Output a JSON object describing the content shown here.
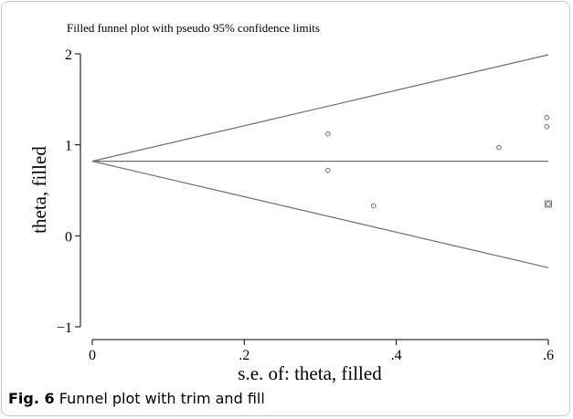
{
  "chart_data": {
    "type": "scatter",
    "title": "Filled funnel plot with pseudo 95% confidence limits",
    "xlabel": "s.e. of: theta, filled",
    "ylabel": "theta, filled",
    "xlim": [
      0,
      0.6
    ],
    "ylim": [
      -1,
      2
    ],
    "x_ticks": [
      0,
      0.2,
      0.4,
      0.6
    ],
    "x_tick_labels": [
      "0",
      ".2",
      ".4",
      ".6"
    ],
    "y_ticks": [
      -1,
      0,
      1,
      2
    ],
    "y_tick_labels": [
      "−1",
      "0",
      "1",
      "2"
    ],
    "pooled_estimate": 0.82,
    "confidence_limits": {
      "x": [
        0,
        0.6
      ],
      "upper": [
        0.82,
        1.99
      ],
      "lower": [
        0.82,
        -0.35
      ]
    },
    "observed_points": [
      {
        "x": 0.31,
        "y": 1.12
      },
      {
        "x": 0.31,
        "y": 0.72
      },
      {
        "x": 0.37,
        "y": 0.33
      },
      {
        "x": 0.535,
        "y": 0.97
      },
      {
        "x": 0.598,
        "y": 1.3
      },
      {
        "x": 0.598,
        "y": 1.2
      },
      {
        "x": 0.6,
        "y": 0.35
      }
    ],
    "filled_points": [
      {
        "x": 0.6,
        "y": 0.35
      }
    ],
    "colors": {
      "lines": "#6e6e6e",
      "points": "#6e6e6e",
      "axes": "#000000"
    }
  },
  "caption": {
    "label": "Fig. 6",
    "text": "Funnel plot with trim and fill"
  }
}
